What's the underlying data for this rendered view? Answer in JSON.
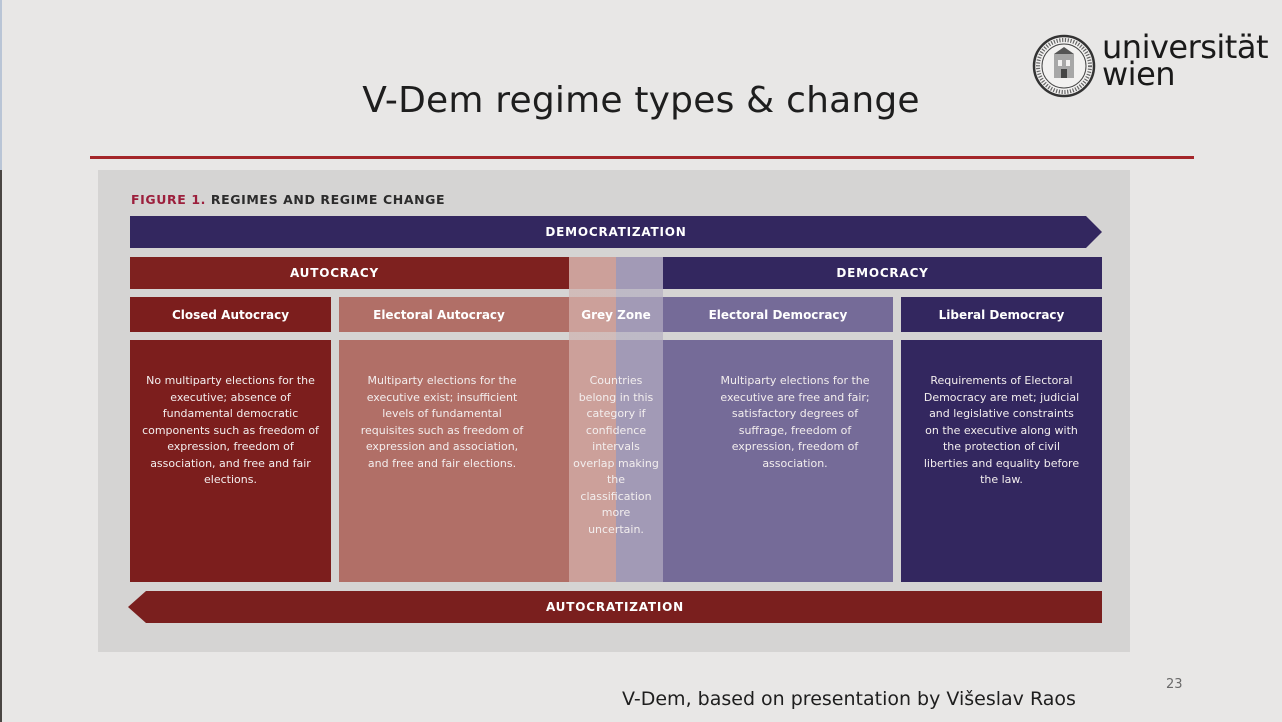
{
  "slide": {
    "title": "V-Dem regime types & change",
    "credit": "V-Dem, based on presentation by Višeslav Raos",
    "page_number": "23"
  },
  "logo": {
    "line1": "universität",
    "line2": "wien",
    "seal_icon": "university-seal-icon"
  },
  "figure": {
    "label_number": "FIGURE 1.",
    "label_text": " REGIMES AND REGIME CHANGE",
    "arrow_top": "DEMOCRATIZATION",
    "arrow_bottom": "AUTOCRATIZATION",
    "band_left": "AUTOCRACY",
    "band_right": "DEMOCRACY",
    "categories": [
      {
        "name": "Closed Autocracy",
        "description": "No multiparty elections for the executive; absence of fundamental democratic components such as freedom of expression, freedom of association, and free and fair elections."
      },
      {
        "name": "Electoral Autocracy",
        "description": "Multiparty elections for the executive exist; insufficient levels of fundamental requisites such as freedom of expression and association, and free and fair elections."
      },
      {
        "name": "Grey Zone",
        "description": "Countries belong in this category if confidence intervals overlap making the classification more uncertain."
      },
      {
        "name": "Electoral Democracy",
        "description": "Multiparty elections for the executive are free and fair; satisfactory degrees of suffrage, freedom of expression, freedom of association."
      },
      {
        "name": "Liberal Democracy",
        "description": "Requirements of Electoral Democracy are met; judicial and legislative constraints on the executive along with the protection of civil liberties and equality before the law."
      }
    ]
  },
  "colors": {
    "autocracy": "#7e211f",
    "electoral_autocracy": "#b16f67",
    "electoral_democracy": "#756b98",
    "democracy": "#33275f",
    "title_rule": "#a4262a"
  }
}
